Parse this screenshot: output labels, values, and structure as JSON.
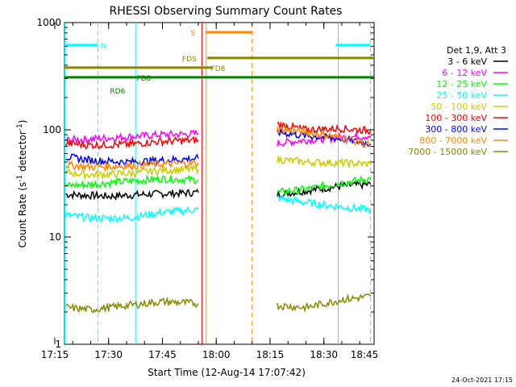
{
  "chart_data": {
    "type": "line",
    "title": "RHESSI Observing Summary Count Rates",
    "xlabel": "Start Time (12-Aug-14 17:07:42)",
    "ylabel": "Count Rate (s⁻¹ detector⁻¹)",
    "ylabel_main": "Count Rate (s",
    "ylabel_sup1": "-1",
    "ylabel_mid": " detector",
    "ylabel_sup2": "-1",
    "ylabel_end": ")",
    "yscale": "log",
    "ylim": [
      1,
      1000
    ],
    "xlim_minutes": [
      17.7,
      104.0
    ],
    "x_tick_labels": [
      "17:15",
      "17:30",
      "17:45",
      "18:00",
      "18:15",
      "18:30",
      "18:45"
    ],
    "x_tick_minutes": [
      15,
      30,
      45,
      60,
      75,
      90,
      105
    ],
    "y_tick_labels": [
      "1",
      "10",
      "100",
      "1000"
    ],
    "y_tick_values": [
      1,
      10,
      100,
      1000
    ],
    "legend_title": "Det 1,9, Att 3",
    "legend_position": "right",
    "data_gap_minutes": [
      55.3,
      77.2
    ],
    "series": [
      {
        "name": "3 - 6 keV",
        "color": "#000000",
        "segments": [
          [
            [
              18,
              25
            ],
            [
              30,
              24
            ],
            [
              40,
              25
            ],
            [
              55,
              26
            ]
          ],
          [
            [
              77,
              25
            ],
            [
              85,
              27
            ],
            [
              95,
              30
            ],
            [
              103,
              31
            ]
          ]
        ]
      },
      {
        "name": "6 - 12 keV",
        "color": "#ff00ff",
        "segments": [
          [
            [
              18,
              80
            ],
            [
              25,
              82
            ],
            [
              35,
              86
            ],
            [
              45,
              90
            ],
            [
              55,
              92
            ]
          ],
          [
            [
              77,
              75
            ],
            [
              85,
              80
            ],
            [
              95,
              85
            ],
            [
              103,
              88
            ]
          ]
        ]
      },
      {
        "name": "12 - 25 keV",
        "color": "#00ff00",
        "segments": [
          [
            [
              18,
              30
            ],
            [
              25,
              31
            ],
            [
              35,
              33
            ],
            [
              45,
              35
            ],
            [
              55,
              34
            ]
          ],
          [
            [
              77,
              26
            ],
            [
              85,
              28
            ],
            [
              95,
              32
            ],
            [
              103,
              35
            ]
          ]
        ]
      },
      {
        "name": "25 - 50 keV",
        "color": "#00ffff",
        "segments": [
          [
            [
              18,
              16
            ],
            [
              25,
              15
            ],
            [
              35,
              15
            ],
            [
              45,
              17
            ],
            [
              55,
              18
            ]
          ],
          [
            [
              77,
              23
            ],
            [
              85,
              21
            ],
            [
              95,
              19
            ],
            [
              103,
              18
            ]
          ]
        ]
      },
      {
        "name": "50 - 100 keV",
        "color": "#cccc00",
        "segments": [
          [
            [
              18,
              40
            ],
            [
              25,
              38
            ],
            [
              35,
              39
            ],
            [
              45,
              42
            ],
            [
              55,
              43
            ]
          ],
          [
            [
              77,
              53
            ],
            [
              85,
              50
            ],
            [
              95,
              49
            ],
            [
              103,
              48
            ]
          ]
        ]
      },
      {
        "name": "100 - 300 keV",
        "color": "#ff0000",
        "segments": [
          [
            [
              18,
              75
            ],
            [
              25,
              72
            ],
            [
              35,
              73
            ],
            [
              45,
              78
            ],
            [
              55,
              80
            ]
          ],
          [
            [
              77,
              113
            ],
            [
              85,
              100
            ],
            [
              95,
              103
            ],
            [
              103,
              98
            ]
          ]
        ]
      },
      {
        "name": "300 - 800 keV",
        "color": "#0000ff",
        "segments": [
          [
            [
              18,
              56
            ],
            [
              25,
              52
            ],
            [
              35,
              50
            ],
            [
              45,
              52
            ],
            [
              55,
              54
            ]
          ],
          [
            [
              77,
              95
            ],
            [
              85,
              88
            ],
            [
              95,
              82
            ],
            [
              103,
              74
            ]
          ]
        ]
      },
      {
        "name": "800 - 7000 keV",
        "color": "#ff8800",
        "segments": [
          [
            [
              18,
              47
            ],
            [
              25,
              45
            ],
            [
              35,
              46
            ],
            [
              45,
              48
            ],
            [
              55,
              49
            ]
          ],
          [
            [
              77,
              102
            ],
            [
              85,
              95
            ],
            [
              95,
              85
            ],
            [
              103,
              72
            ]
          ]
        ]
      },
      {
        "name": "7000 - 15000 keV",
        "color": "#888800",
        "segments": [
          [
            [
              18,
              2.2
            ],
            [
              25,
              2.1
            ],
            [
              35,
              2.3
            ],
            [
              45,
              2.5
            ],
            [
              55,
              2.4
            ]
          ],
          [
            [
              77,
              2.3
            ],
            [
              85,
              2.2
            ],
            [
              95,
              2.6
            ],
            [
              103,
              2.8
            ]
          ]
        ]
      }
    ],
    "flag_bars": [
      {
        "label": "N",
        "color": "#00ffff",
        "y": 0.93,
        "segments": [
          [
            17.7,
            27.0
          ],
          [
            93.3,
            103.0
          ]
        ],
        "label_at": 28.5
      },
      {
        "label": "S",
        "color": "#ff8800",
        "y": 0.97,
        "segments": [
          [
            57.0,
            70.0
          ]
        ],
        "label_at": 53.5
      },
      {
        "label": "FDS",
        "color": "#888800",
        "y": 0.89,
        "segments": [
          [
            57.5,
            104.0
          ]
        ],
        "label_at": 52.5
      },
      {
        "label": "FD8",
        "color": "#888800",
        "y": 0.86,
        "segments": [
          [
            17.7,
            59.0
          ]
        ],
        "label_at": 60.5
      },
      {
        "label": "FD8",
        "color": "#008000",
        "y": 0.83,
        "segments": [
          [
            17.7,
            104.0
          ]
        ],
        "label_at": 39.8
      },
      {
        "label": "RD6",
        "color": "#008000",
        "y": 0.79,
        "segments": [],
        "label_at": 32.5
      }
    ],
    "vertical_markers": [
      {
        "kind": "saa",
        "color": "#00ffff",
        "style": "solid",
        "minutes": [
          17.8,
          37.5,
          94.0
        ]
      },
      {
        "kind": "saa",
        "color": "#00ffff",
        "style": "dashed",
        "minutes": [
          27.0,
          103.0
        ]
      },
      {
        "kind": "night",
        "color": "#ff8800",
        "style": "solid",
        "minutes": [
          57.2
        ]
      },
      {
        "kind": "night",
        "color": "#ff8800",
        "style": "dashed",
        "minutes": [
          70.0
        ]
      },
      {
        "kind": "attenuator",
        "color": "#ff0000",
        "style": "solid",
        "minutes": [
          56.0
        ]
      }
    ]
  },
  "footer": {
    "timestamp": "24-Oct-2021 17:15"
  }
}
